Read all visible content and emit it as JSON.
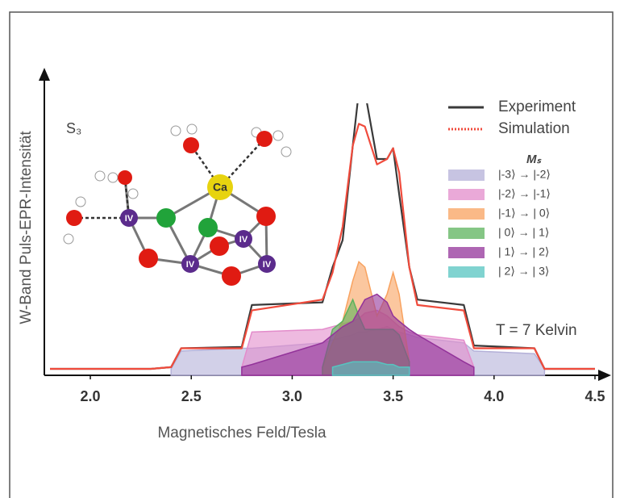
{
  "chart_data": {
    "type": "line",
    "xlabel": "Magnetisches Feld/Tesla",
    "ylabel": "W-Band Puls-EPR-Intensität",
    "annotation": "S₃",
    "temperature_label": "T = 7 Kelvin",
    "legend_title": "Mₛ",
    "atom_labels": [
      "Ca",
      "IV",
      "IV",
      "IV",
      "IV"
    ],
    "xlim": [
      1.8,
      4.5
    ],
    "ylim": [
      0,
      1
    ],
    "xticks": [
      {
        "value": 2.0,
        "label": "2.0"
      },
      2.5,
      {
        "value": 3.0,
        "label": "3.0"
      },
      3.5,
      {
        "value": 4.0,
        "label": "4.0"
      },
      4.5
    ],
    "x": [
      1.8,
      2.3,
      2.4,
      2.45,
      2.75,
      2.8,
      3.15,
      3.2,
      3.25,
      3.3,
      3.33,
      3.36,
      3.42,
      3.47,
      3.5,
      3.53,
      3.58,
      3.62,
      3.85,
      3.9,
      4.2,
      4.25,
      4.5
    ],
    "series": [
      {
        "name": "Experiment",
        "color": "#3a3a3a",
        "fill": false,
        "values": [
          0.024,
          0.024,
          0.03,
          0.1,
          0.105,
          0.26,
          0.27,
          0.4,
          0.5,
          0.85,
          1.05,
          1.05,
          0.8,
          0.8,
          0.84,
          0.67,
          0.4,
          0.28,
          0.26,
          0.11,
          0.1,
          0.024,
          0.024
        ]
      },
      {
        "name": "Simulation",
        "color": "#f04b3c",
        "fill": false,
        "legend_dash": true,
        "values": [
          0.024,
          0.024,
          0.03,
          0.1,
          0.1,
          0.24,
          0.28,
          0.38,
          0.55,
          0.85,
          0.93,
          0.92,
          0.78,
          0.8,
          0.84,
          0.75,
          0.4,
          0.26,
          0.24,
          0.1,
          0.1,
          0.024,
          0.024
        ]
      },
      {
        "name": "|-3⟩ → |-2⟩",
        "color": "#b4b0d8",
        "fill": true,
        "values": [
          null,
          null,
          0.024,
          0.09,
          0.1,
          0.1,
          0.12,
          0.13,
          0.14,
          0.15,
          0.16,
          0.16,
          0.17,
          0.18,
          0.17,
          0.16,
          0.15,
          0.14,
          0.12,
          0.09,
          0.08,
          0.024,
          null
        ]
      },
      {
        "name": "|-2⟩ → |-1⟩",
        "color": "#e38ccb",
        "fill": true,
        "values": [
          null,
          null,
          null,
          null,
          0.03,
          0.16,
          0.17,
          0.18,
          0.19,
          0.2,
          0.21,
          0.23,
          0.24,
          0.22,
          0.2,
          0.18,
          0.16,
          0.15,
          0.13,
          0.03,
          null,
          null,
          null
        ]
      },
      {
        "name": "|-1⟩ → | 0⟩",
        "color": "#f8a25f",
        "fill": true,
        "values": [
          null,
          null,
          null,
          null,
          null,
          null,
          0.03,
          0.12,
          0.2,
          0.35,
          0.42,
          0.4,
          0.22,
          0.3,
          0.38,
          0.3,
          0.05,
          null,
          null,
          null,
          null,
          null,
          null
        ]
      },
      {
        "name": "| 0⟩ → | 1⟩",
        "color": "#5cb35c",
        "fill": true,
        "values": [
          null,
          null,
          null,
          null,
          null,
          null,
          0.03,
          0.17,
          0.2,
          0.28,
          0.22,
          0.17,
          0.17,
          0.17,
          0.17,
          0.15,
          0.05,
          null,
          null,
          null,
          null,
          null,
          null
        ]
      },
      {
        "name": "| 1⟩ → | 2⟩",
        "color": "#93339a",
        "fill": true,
        "values": [
          null,
          null,
          null,
          null,
          0.03,
          0.04,
          0.12,
          0.15,
          0.18,
          0.2,
          0.24,
          0.28,
          0.3,
          0.27,
          0.22,
          0.2,
          0.17,
          0.15,
          0.05,
          0.03,
          null,
          null,
          null
        ]
      },
      {
        "name": "| 2⟩ → | 3⟩",
        "color": "#56c4c0",
        "fill": true,
        "values": [
          null,
          null,
          null,
          null,
          null,
          null,
          null,
          0.03,
          0.04,
          0.05,
          0.05,
          0.05,
          0.05,
          0.04,
          0.04,
          0.03,
          0.03,
          null,
          null,
          null,
          null,
          null,
          null
        ]
      }
    ]
  }
}
